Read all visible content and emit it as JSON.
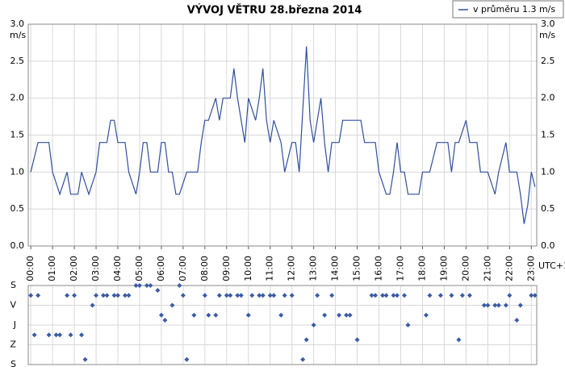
{
  "chart_data": [
    {
      "type": "line",
      "title": "VÝVOJ VĚTRU  28.března 2014",
      "y_label": "m/s",
      "x_note": "UTC+1",
      "grid": true,
      "legend": "top-right",
      "x": [
        0,
        10,
        20,
        30,
        40,
        50,
        60,
        70,
        80,
        90,
        100,
        110,
        120,
        130,
        140,
        150,
        160,
        170,
        180,
        190,
        200,
        210,
        220,
        230,
        240,
        250,
        260,
        270,
        280,
        290,
        300,
        310,
        320,
        330,
        340,
        350,
        360,
        370,
        380,
        390,
        400,
        410,
        420,
        430,
        440,
        450,
        460,
        470,
        480,
        490,
        500,
        510,
        520,
        530,
        540,
        550,
        560,
        570,
        580,
        590,
        600,
        610,
        620,
        630,
        640,
        650,
        660,
        670,
        680,
        690,
        700,
        710,
        720,
        730,
        740,
        750,
        760,
        770,
        780,
        790,
        800,
        810,
        820,
        830,
        840,
        850,
        860,
        870,
        880,
        890,
        900,
        910,
        920,
        930,
        940,
        950,
        960,
        970,
        980,
        990,
        1000,
        1010,
        1020,
        1030,
        1040,
        1050,
        1060,
        1070,
        1080,
        1090,
        1100,
        1110,
        1120,
        1130,
        1140,
        1150,
        1160,
        1170,
        1180,
        1190,
        1200,
        1210,
        1220,
        1230,
        1240,
        1250,
        1260,
        1270,
        1280,
        1290,
        1300,
        1310,
        1320,
        1330,
        1340,
        1350,
        1360,
        1370,
        1380,
        1390
      ],
      "series": [
        {
          "name": "v průměru 1.3 m/s",
          "color": "#2e4f9e",
          "values": [
            1.0,
            1.2,
            1.4,
            1.4,
            1.4,
            1.4,
            1.0,
            0.85,
            0.7,
            0.85,
            1.0,
            0.7,
            0.7,
            0.7,
            1.0,
            0.85,
            0.7,
            0.85,
            1.0,
            1.4,
            1.4,
            1.4,
            1.7,
            1.7,
            1.4,
            1.4,
            1.4,
            1.0,
            0.85,
            0.7,
            1.0,
            1.4,
            1.4,
            1.0,
            1.0,
            1.0,
            1.4,
            1.4,
            1.0,
            1.0,
            0.7,
            0.7,
            0.85,
            1.0,
            1.0,
            1.0,
            1.0,
            1.4,
            1.7,
            1.7,
            1.85,
            2.0,
            1.7,
            2.0,
            2.0,
            2.0,
            2.4,
            2.0,
            1.7,
            1.4,
            2.0,
            1.85,
            1.7,
            2.0,
            2.4,
            1.7,
            1.4,
            1.7,
            1.55,
            1.4,
            1.0,
            1.2,
            1.4,
            1.4,
            1.0,
            1.85,
            2.7,
            1.7,
            1.4,
            1.7,
            2.0,
            1.4,
            1.0,
            1.4,
            1.4,
            1.4,
            1.7,
            1.7,
            1.7,
            1.7,
            1.7,
            1.7,
            1.4,
            1.4,
            1.4,
            1.4,
            1.0,
            0.85,
            0.7,
            0.7,
            1.0,
            1.4,
            1.0,
            1.0,
            0.7,
            0.7,
            0.7,
            0.7,
            1.0,
            1.0,
            1.0,
            1.2,
            1.4,
            1.4,
            1.4,
            1.4,
            1.0,
            1.4,
            1.4,
            1.55,
            1.7,
            1.4,
            1.4,
            1.4,
            1.0,
            1.0,
            1.0,
            0.85,
            0.7,
            1.0,
            1.2,
            1.4,
            1.0,
            1.0,
            1.0,
            0.7,
            0.3,
            0.55,
            1.0,
            0.8
          ]
        }
      ],
      "xlim": [
        -7,
        1395
      ],
      "xticks": [
        {
          "value": 0,
          "label": "00:00"
        },
        {
          "value": 60,
          "label": "01:00"
        },
        {
          "value": 120,
          "label": "02:00"
        },
        {
          "value": 180,
          "label": "03:00"
        },
        {
          "value": 240,
          "label": "04:00"
        },
        {
          "value": 300,
          "label": "05:00"
        },
        {
          "value": 360,
          "label": "06:00"
        },
        {
          "value": 420,
          "label": "07:00"
        },
        {
          "value": 480,
          "label": "08:00"
        },
        {
          "value": 540,
          "label": "09:00"
        },
        {
          "value": 600,
          "label": "10:00"
        },
        {
          "value": 660,
          "label": "11:00"
        },
        {
          "value": 720,
          "label": "12:00"
        },
        {
          "value": 780,
          "label": "13:00"
        },
        {
          "value": 840,
          "label": "14:00"
        },
        {
          "value": 900,
          "label": "15:00"
        },
        {
          "value": 960,
          "label": "16:00"
        },
        {
          "value": 1020,
          "label": "17:00"
        },
        {
          "value": 1080,
          "label": "18:00"
        },
        {
          "value": 1140,
          "label": "19:00"
        },
        {
          "value": 1200,
          "label": "20:00"
        },
        {
          "value": 1260,
          "label": "21:00"
        },
        {
          "value": 1320,
          "label": "22:00"
        },
        {
          "value": 1380,
          "label": "23:00"
        }
      ],
      "ylim": [
        0,
        3
      ],
      "yticks": [
        {
          "value": 0,
          "label": "0.0"
        },
        0.5,
        {
          "value": 1,
          "label": "1.0"
        },
        1.5,
        {
          "value": 2,
          "label": "2.0"
        },
        2.5,
        {
          "value": 3,
          "label": "3.0"
        }
      ]
    },
    {
      "type": "scatter",
      "color": "#3b5ba5",
      "grid": true,
      "x": [
        0,
        10,
        20,
        50,
        70,
        80,
        100,
        110,
        120,
        140,
        150,
        170,
        180,
        200,
        210,
        230,
        240,
        260,
        270,
        290,
        300,
        320,
        330,
        350,
        360,
        370,
        390,
        410,
        420,
        430,
        450,
        480,
        490,
        510,
        520,
        540,
        550,
        570,
        580,
        600,
        610,
        630,
        640,
        660,
        670,
        690,
        700,
        720,
        750,
        760,
        780,
        790,
        810,
        830,
        850,
        870,
        880,
        900,
        940,
        950,
        970,
        980,
        1000,
        1010,
        1030,
        1040,
        1090,
        1100,
        1130,
        1160,
        1180,
        1190,
        1210,
        1250,
        1260,
        1280,
        1290,
        1310,
        1320,
        1340,
        1350,
        1380,
        1390
      ],
      "values": [
        45,
        225,
        45,
        225,
        225,
        225,
        45,
        225,
        45,
        225,
        337,
        90,
        45,
        45,
        45,
        45,
        45,
        45,
        45,
        0,
        0,
        0,
        0,
        22,
        135,
        158,
        90,
        0,
        45,
        337,
        135,
        45,
        135,
        135,
        45,
        45,
        45,
        45,
        45,
        135,
        45,
        45,
        45,
        45,
        45,
        135,
        45,
        45,
        337,
        247,
        180,
        45,
        135,
        45,
        135,
        135,
        135,
        247,
        45,
        45,
        45,
        45,
        45,
        45,
        45,
        180,
        135,
        45,
        45,
        45,
        247,
        45,
        45,
        90,
        90,
        90,
        90,
        90,
        45,
        158,
        90,
        45,
        45
      ],
      "xlim": [
        -7,
        1395
      ],
      "ylim": [
        360,
        0
      ],
      "yticks": [
        {
          "value": 0,
          "label": "S"
        },
        {
          "value": 90,
          "label": "V"
        },
        {
          "value": 180,
          "label": "J"
        },
        {
          "value": 270,
          "label": "Z"
        },
        {
          "value": 360,
          "label": "S"
        }
      ]
    }
  ]
}
